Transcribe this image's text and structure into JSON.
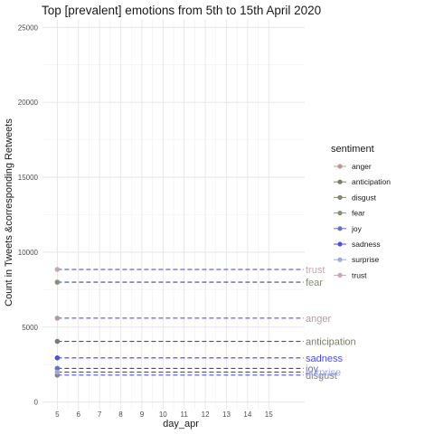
{
  "chart_data": {
    "type": "line",
    "title": "Top [prevalent] emotions from 5th to 15th April 2020",
    "xlabel": "day_apr",
    "ylabel": "Count in Tweets &corresponding Retweets",
    "x_ticks": [
      5,
      6,
      7,
      8,
      9,
      10,
      11,
      12,
      13,
      14,
      15
    ],
    "xlim": [
      4.3,
      16.7
    ],
    "y_ticks": [
      0,
      5000,
      10000,
      15000,
      20000,
      25000
    ],
    "ylim": [
      -500,
      25500
    ],
    "grid": true,
    "legend": {
      "title": "sentiment",
      "placement": "right"
    },
    "series": [
      {
        "name": "anger",
        "color": "#b89a9a",
        "x": [
          5
        ],
        "y": [
          5600
        ]
      },
      {
        "name": "anticipation",
        "color": "#7c7c6c",
        "x": [
          5
        ],
        "y": [
          4050
        ]
      },
      {
        "name": "disgust",
        "color": "#808875",
        "x": [
          5
        ],
        "y": [
          1800
        ]
      },
      {
        "name": "fear",
        "color": "#83917a",
        "x": [
          5
        ],
        "y": [
          8000
        ]
      },
      {
        "name": "joy",
        "color": "#6674b8",
        "x": [
          5
        ],
        "y": [
          2250
        ]
      },
      {
        "name": "sadness",
        "color": "#4f4fe8",
        "x": [
          5
        ],
        "y": [
          2950
        ]
      },
      {
        "name": "surprise",
        "color": "#a0a6e8",
        "x": [
          5
        ],
        "y": [
          2000
        ]
      },
      {
        "name": "trust",
        "color": "#c8a8b0",
        "x": [
          5
        ],
        "y": [
          8850
        ]
      }
    ]
  }
}
